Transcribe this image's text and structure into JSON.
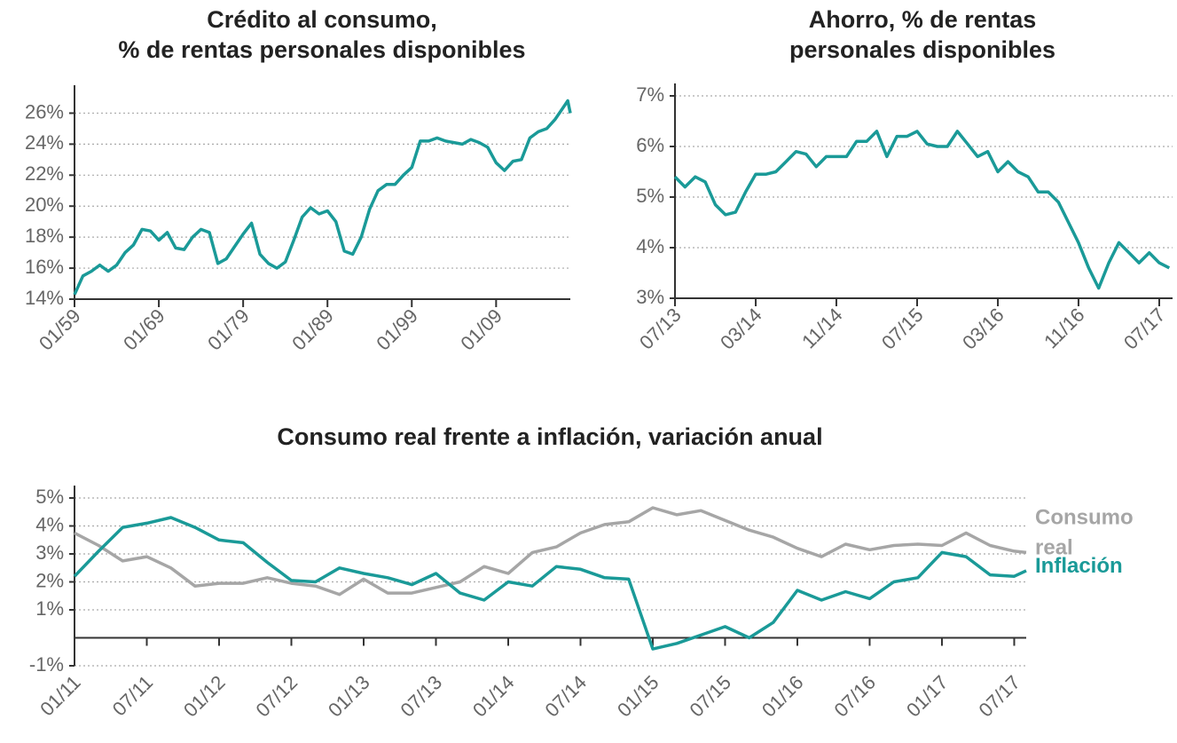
{
  "chart_data": [
    {
      "type": "line",
      "title": [
        "Crédito al consumo,",
        "% de rentas personales disponibles"
      ],
      "x": [
        1959,
        1960,
        1961,
        1962,
        1963,
        1964,
        1965,
        1966,
        1967,
        1968,
        1969,
        1970,
        1971,
        1972,
        1973,
        1974,
        1975,
        1976,
        1977,
        1978,
        1979,
        1980,
        1981,
        1982,
        1983,
        1984,
        1985,
        1986,
        1987,
        1988,
        1989,
        1990,
        1991,
        1992,
        1993,
        1994,
        1995,
        1996,
        1997,
        1998,
        1999,
        2000,
        2001,
        2002,
        2003,
        2004,
        2005,
        2006,
        2007,
        2008,
        2009,
        2010,
        2011,
        2012,
        2013,
        2014,
        2015,
        2016,
        2017,
        2017.5,
        2017.8
      ],
      "series": [
        {
          "color": "#1a9a98",
          "values": [
            14.3,
            15.5,
            15.8,
            16.2,
            15.8,
            16.2,
            17,
            17.5,
            18.5,
            18.4,
            17.8,
            18.3,
            17.3,
            17.2,
            18,
            18.5,
            18.3,
            16.3,
            16.6,
            17.4,
            18.2,
            18.9,
            16.9,
            16.3,
            16.0,
            16.4,
            17.8,
            19.3,
            19.9,
            19.5,
            19.7,
            19.0,
            17.1,
            16.9,
            18.0,
            19.8,
            21.0,
            21.4,
            21.4,
            22.0,
            22.5,
            24.2,
            24.2,
            24.4,
            24.2,
            24.1,
            24.0,
            24.3,
            24.1,
            23.8,
            22.8,
            22.3,
            22.9,
            23.0,
            24.4,
            24.8,
            25.0,
            25.6,
            26.4,
            26.8,
            26.0
          ]
        }
      ],
      "xlim": [
        1959,
        2017.8
      ],
      "ylim": [
        14,
        27
      ],
      "xticks": [
        {
          "value": 1959,
          "label": "01/59"
        },
        {
          "value": 1969,
          "label": "01/69"
        },
        {
          "value": 1979,
          "label": "01/79"
        },
        {
          "value": 1989,
          "label": "01/89"
        },
        {
          "value": 1999,
          "label": "01/99"
        },
        {
          "value": 2009,
          "label": "01/09"
        }
      ],
      "yticks": [
        {
          "value": 14,
          "label": "14%"
        },
        {
          "value": 16,
          "label": "16%"
        },
        {
          "value": 18,
          "label": "18%"
        },
        {
          "value": 20,
          "label": "20%"
        },
        {
          "value": 22,
          "label": "22%"
        },
        {
          "value": 24,
          "label": "24%"
        },
        {
          "value": 26,
          "label": "26%"
        }
      ],
      "grid": true
    },
    {
      "type": "line",
      "title": [
        "Ahorro, % de rentas",
        "personales disponibles"
      ],
      "x": [
        2013.5,
        2013.583,
        2013.667,
        2013.75,
        2013.833,
        2013.917,
        2014,
        2014.083,
        2014.167,
        2014.25,
        2014.333,
        2014.417,
        2014.5,
        2014.583,
        2014.667,
        2014.75,
        2014.833,
        2014.917,
        2015,
        2015.083,
        2015.167,
        2015.25,
        2015.333,
        2015.417,
        2015.5,
        2015.583,
        2015.667,
        2015.75,
        2015.833,
        2015.917,
        2016,
        2016.083,
        2016.167,
        2016.25,
        2016.333,
        2016.417,
        2016.5,
        2016.583,
        2016.667,
        2016.75,
        2016.833,
        2016.917,
        2017,
        2017.083,
        2017.167,
        2017.25,
        2017.333,
        2017.417,
        2017.5,
        2017.583
      ],
      "series": [
        {
          "color": "#1a9a98",
          "values": [
            5.4,
            5.2,
            5.4,
            5.3,
            4.85,
            4.65,
            4.7,
            5.1,
            5.45,
            5.45,
            5.5,
            5.7,
            5.9,
            5.85,
            5.6,
            5.8,
            5.8,
            5.8,
            6.1,
            6.1,
            6.3,
            5.8,
            6.2,
            6.2,
            6.3,
            6.05,
            6.0,
            6.0,
            6.3,
            6.05,
            5.8,
            5.9,
            5.5,
            5.7,
            5.5,
            5.4,
            5.1,
            5.1,
            4.9,
            4.5,
            4.1,
            3.6,
            3.2,
            3.7,
            4.1,
            3.9,
            3.7,
            3.9,
            3.7,
            3.6
          ]
        }
      ],
      "xlim": [
        2013.5,
        2017.61
      ],
      "ylim": [
        3,
        7
      ],
      "xticks": [
        {
          "value": 2013.5,
          "label": "07/13"
        },
        {
          "value": 2014.167,
          "label": "03/14"
        },
        {
          "value": 2014.833,
          "label": "11/14"
        },
        {
          "value": 2015.5,
          "label": "07/15"
        },
        {
          "value": 2016.167,
          "label": "03/16"
        },
        {
          "value": 2016.833,
          "label": "11/16"
        },
        {
          "value": 2017.5,
          "label": "07/17"
        }
      ],
      "yticks": [
        {
          "value": 3,
          "label": "3%"
        },
        {
          "value": 4,
          "label": "4%"
        },
        {
          "value": 5,
          "label": "5%"
        },
        {
          "value": 6,
          "label": "6%"
        },
        {
          "value": 7,
          "label": "7%"
        }
      ],
      "grid": true
    },
    {
      "type": "line",
      "title": [
        "Consumo real frente a inflación, variación anual"
      ],
      "x": [
        2011,
        2011.167,
        2011.333,
        2011.5,
        2011.667,
        2011.833,
        2012,
        2012.167,
        2012.333,
        2012.5,
        2012.667,
        2012.833,
        2013,
        2013.167,
        2013.333,
        2013.5,
        2013.667,
        2013.833,
        2014,
        2014.167,
        2014.333,
        2014.5,
        2014.667,
        2014.833,
        2015,
        2015.167,
        2015.333,
        2015.5,
        2015.667,
        2015.833,
        2016,
        2016.167,
        2016.333,
        2016.5,
        2016.667,
        2016.833,
        2017,
        2017.167,
        2017.333,
        2017.5,
        2017.583
      ],
      "series": [
        {
          "name": "Consumo real",
          "color": "#a6a6a6",
          "values": [
            3.75,
            3.3,
            2.75,
            2.9,
            2.5,
            1.85,
            1.95,
            1.95,
            2.15,
            1.95,
            1.85,
            1.55,
            2.1,
            1.6,
            1.6,
            1.8,
            2.0,
            2.55,
            2.3,
            3.05,
            3.25,
            3.75,
            4.05,
            4.15,
            4.65,
            4.4,
            4.55,
            4.2,
            3.85,
            3.6,
            3.2,
            2.9,
            3.35,
            3.15,
            3.3,
            3.35,
            3.3,
            3.75,
            3.3,
            3.1,
            3.05
          ]
        },
        {
          "name": "Inflación",
          "color": "#1a9a98",
          "values": [
            2.2,
            3.1,
            3.95,
            4.1,
            4.3,
            3.95,
            3.5,
            3.4,
            2.7,
            2.05,
            2.0,
            2.5,
            2.3,
            2.15,
            1.9,
            2.3,
            1.6,
            1.35,
            2.0,
            1.85,
            2.55,
            2.45,
            2.15,
            2.1,
            -0.4,
            -0.2,
            0.1,
            0.4,
            0.0,
            0.55,
            1.7,
            1.35,
            1.65,
            1.4,
            2.0,
            2.15,
            3.05,
            2.9,
            2.25,
            2.2,
            2.4
          ]
        }
      ],
      "xlim": [
        2011,
        2017.583
      ],
      "ylim": [
        -1,
        5
      ],
      "xticks": [
        {
          "value": 2011,
          "label": "01/11"
        },
        {
          "value": 2011.5,
          "label": "07/11"
        },
        {
          "value": 2012,
          "label": "01/12"
        },
        {
          "value": 2012.5,
          "label": "07/12"
        },
        {
          "value": 2013,
          "label": "01/13"
        },
        {
          "value": 2013.5,
          "label": "07/13"
        },
        {
          "value": 2014,
          "label": "01/14"
        },
        {
          "value": 2014.5,
          "label": "07/14"
        },
        {
          "value": 2015,
          "label": "01/15"
        },
        {
          "value": 2015.5,
          "label": "07/15"
        },
        {
          "value": 2016,
          "label": "01/16"
        },
        {
          "value": 2016.5,
          "label": "07/16"
        },
        {
          "value": 2017,
          "label": "01/17"
        },
        {
          "value": 2017.5,
          "label": "07/17"
        }
      ],
      "yticks": [
        {
          "value": -1,
          "label": "-1%"
        },
        {
          "value": 1,
          "label": "1%"
        },
        {
          "value": 2,
          "label": "2%"
        },
        {
          "value": 3,
          "label": "3%"
        },
        {
          "value": 4,
          "label": "4%"
        },
        {
          "value": 5,
          "label": "5%"
        }
      ],
      "grid": true
    }
  ]
}
